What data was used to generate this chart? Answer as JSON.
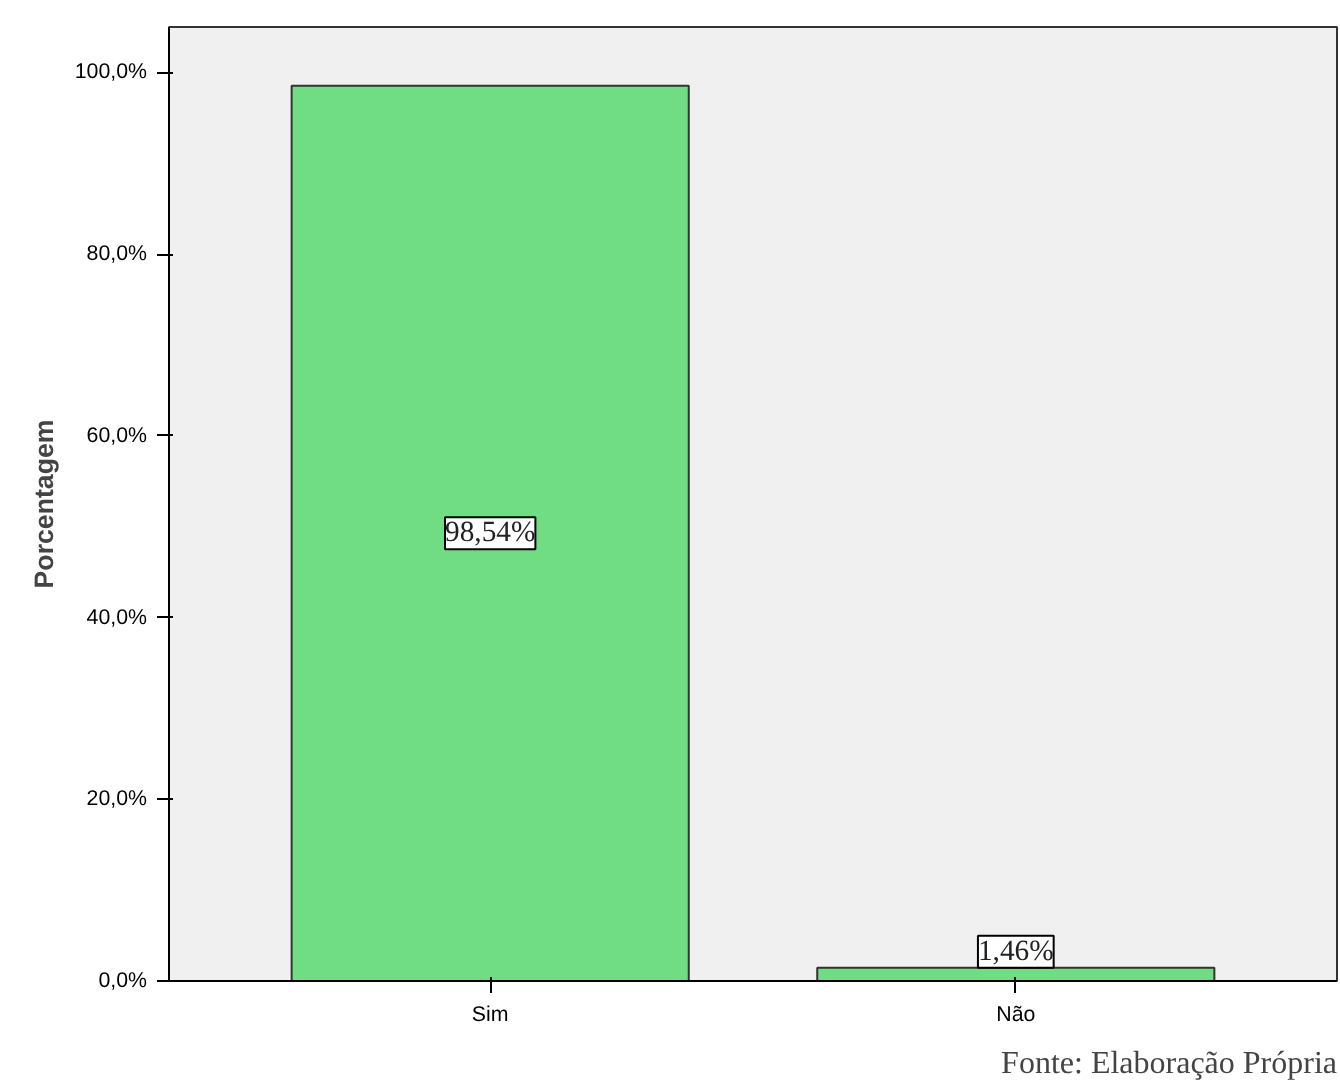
{
  "chart_data": {
    "type": "bar",
    "ylabel": "Porcentagem",
    "categories": [
      "Sim",
      "Não"
    ],
    "values": [
      98.54,
      1.46
    ],
    "value_labels": [
      "98,54%",
      "1,46%"
    ],
    "color": "#70dd85",
    "ylim": [
      0,
      105
    ],
    "yticks": [
      {
        "value": 0,
        "label": "0,0%"
      },
      {
        "value": 20,
        "label": "20,0%"
      },
      {
        "value": 40,
        "label": "40,0%"
      },
      {
        "value": 60,
        "label": "60,0%"
      },
      {
        "value": 80,
        "label": "80,0%"
      },
      {
        "value": 100,
        "label": "100,0%"
      }
    ],
    "grid": false,
    "annotations": [
      "Fonte: Elaboração Própria"
    ]
  }
}
